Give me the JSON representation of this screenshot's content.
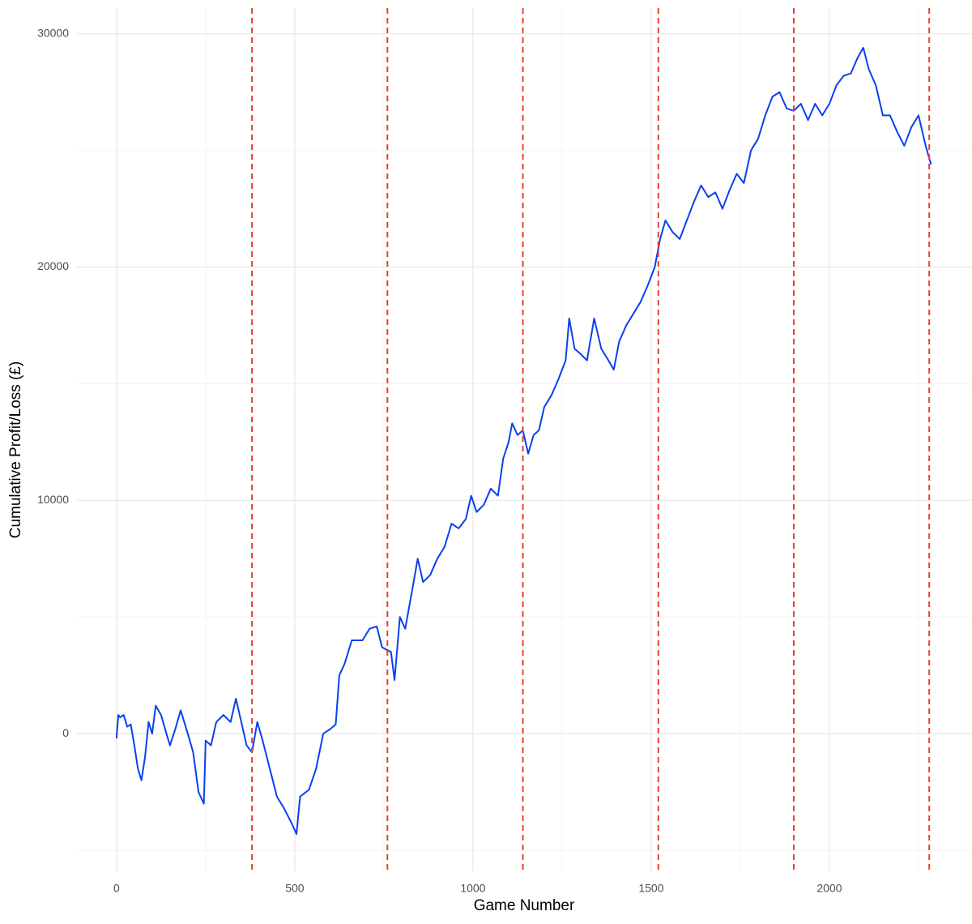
{
  "chart_data": {
    "type": "line",
    "x_label": "Game Number",
    "y_label": "Cumulative Profit/Loss (£)",
    "x": [
      0,
      5,
      10,
      20,
      30,
      40,
      50,
      60,
      70,
      80,
      90,
      100,
      110,
      125,
      140,
      150,
      165,
      180,
      200,
      215,
      230,
      245,
      250,
      265,
      280,
      300,
      320,
      335,
      350,
      365,
      380,
      395,
      410,
      430,
      450,
      470,
      490,
      505,
      515,
      540,
      560,
      580,
      600,
      615,
      625,
      640,
      660,
      690,
      710,
      730,
      745,
      770,
      780,
      795,
      810,
      830,
      845,
      860,
      880,
      900,
      920,
      940,
      960,
      980,
      995,
      1010,
      1030,
      1050,
      1070,
      1085,
      1100,
      1110,
      1125,
      1140,
      1155,
      1170,
      1185,
      1200,
      1220,
      1240,
      1260,
      1270,
      1285,
      1300,
      1320,
      1340,
      1360,
      1380,
      1395,
      1410,
      1430,
      1450,
      1470,
      1490,
      1510,
      1525,
      1540,
      1560,
      1580,
      1600,
      1620,
      1640,
      1660,
      1680,
      1700,
      1720,
      1740,
      1760,
      1780,
      1800,
      1820,
      1840,
      1860,
      1880,
      1900,
      1920,
      1940,
      1960,
      1980,
      2000,
      2020,
      2040,
      2060,
      2080,
      2095,
      2110,
      2130,
      2150,
      2170,
      2190,
      2210,
      2230,
      2250,
      2270,
      2285
    ],
    "series": [
      {
        "color": "#0a3ff0",
        "values": [
          -200,
          800,
          700,
          800,
          300,
          400,
          -500,
          -1500,
          -2000,
          -1000,
          500,
          0,
          1200,
          800,
          0,
          -500,
          200,
          1000,
          0,
          -800,
          -2500,
          -3000,
          -300,
          -500,
          500,
          800,
          500,
          1500,
          500,
          -500,
          -800,
          500,
          -300,
          -1500,
          -2700,
          -3200,
          -3800,
          -4300,
          -2700,
          -2400,
          -1500,
          0,
          200,
          400,
          2500,
          3000,
          4000,
          4000,
          4500,
          4600,
          3700,
          3500,
          2300,
          5000,
          4500,
          6200,
          7500,
          6500,
          6800,
          7500,
          8000,
          9000,
          8800,
          9200,
          10200,
          9500,
          9800,
          10500,
          10200,
          11800,
          12500,
          13300,
          12800,
          13000,
          12000,
          12800,
          13000,
          14000,
          14500,
          15200,
          16000,
          17800,
          16500,
          16300,
          16000,
          17800,
          16500,
          16000,
          15600,
          16800,
          17500,
          18000,
          18500,
          19200,
          20000,
          21200,
          22000,
          21500,
          21200,
          22000,
          22800,
          23500,
          23000,
          23200,
          22500,
          23300,
          24000,
          23600,
          25000,
          25500,
          26500,
          27300,
          27500,
          26800,
          26700,
          27000,
          26300,
          27000,
          26500,
          27000,
          27800,
          28200,
          28300,
          29000,
          29400,
          28500,
          27800,
          26500,
          26500,
          25800,
          25200,
          26000,
          26500,
          25200,
          24400
        ]
      }
    ],
    "vlines": {
      "color": "#e8412c",
      "values": [
        380,
        760,
        1140,
        1520,
        1900,
        2280
      ]
    },
    "xlim": [
      -111,
      2400
    ],
    "ylim": [
      -5900,
      31100
    ],
    "xticks": [
      0,
      500,
      1000,
      1500,
      2000
    ],
    "yticks": [
      0,
      10000,
      20000,
      30000
    ],
    "grid": true
  }
}
